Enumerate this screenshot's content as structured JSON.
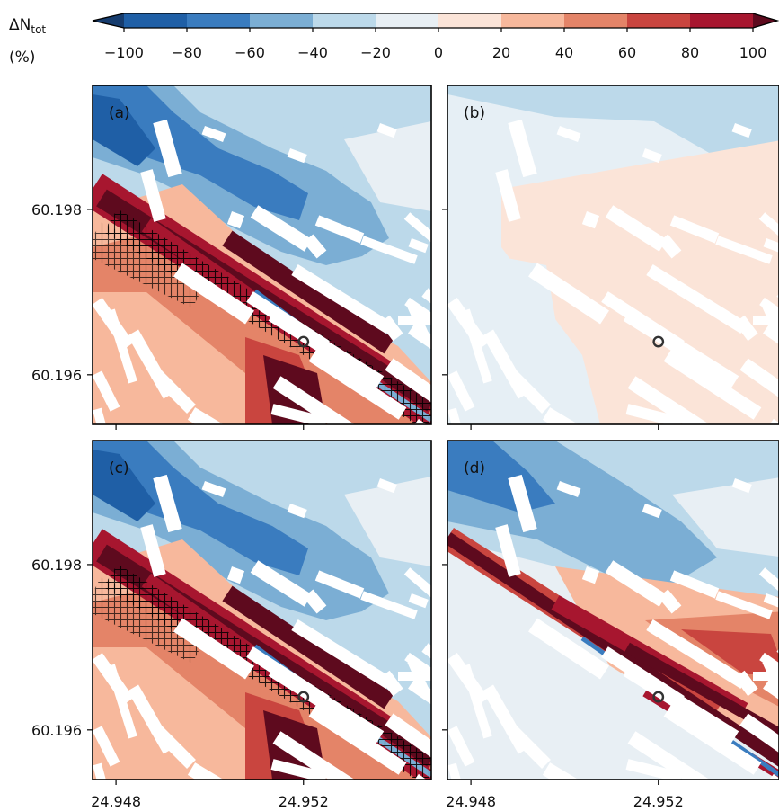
{
  "colorbar": {
    "label_main": "ΔN",
    "label_sub": "tot",
    "unit": "(%)",
    "ticks": [
      "−100",
      "−80",
      "−60",
      "−40",
      "−20",
      "0",
      "20",
      "40",
      "60",
      "80",
      "100"
    ],
    "tick_values": [
      -100,
      -80,
      -60,
      -40,
      -20,
      0,
      20,
      40,
      60,
      80,
      100
    ],
    "colors": [
      "#1f5fa6",
      "#3a7cbf",
      "#7baed4",
      "#bcd9ea",
      "#e8eff4",
      "#fbe4d8",
      "#f7b89c",
      "#e48468",
      "#c9453f",
      "#a7162f"
    ],
    "extend_low_color": "#163c6e",
    "extend_high_color": "#5e0a1e"
  },
  "panels": [
    {
      "label": "(a)",
      "scenario": "strong_increase"
    },
    {
      "label": "(b)",
      "scenario": "weak_increase"
    },
    {
      "label": "(c)",
      "scenario": "strong_increase"
    },
    {
      "label": "(d)",
      "scenario": "moderate_increase"
    }
  ],
  "chart_data": {
    "type": "heatmap",
    "layout": "2x2 panels",
    "x_ticks": [
      "24.948",
      "24.952"
    ],
    "x_tick_values": [
      24.948,
      24.952
    ],
    "y_ticks": [
      "60.198",
      "60.196"
    ],
    "y_tick_values": [
      60.198,
      60.196
    ],
    "xlim": [
      24.9475,
      24.9558
    ],
    "ylim": [
      60.1954,
      60.1995
    ],
    "value_range": [
      -100,
      100
    ],
    "marker": {
      "lon": 24.952,
      "lat": 60.1964
    },
    "colors": {
      "building": "#ffffff",
      "marker": "#333333",
      "hatch": "#000000"
    }
  }
}
